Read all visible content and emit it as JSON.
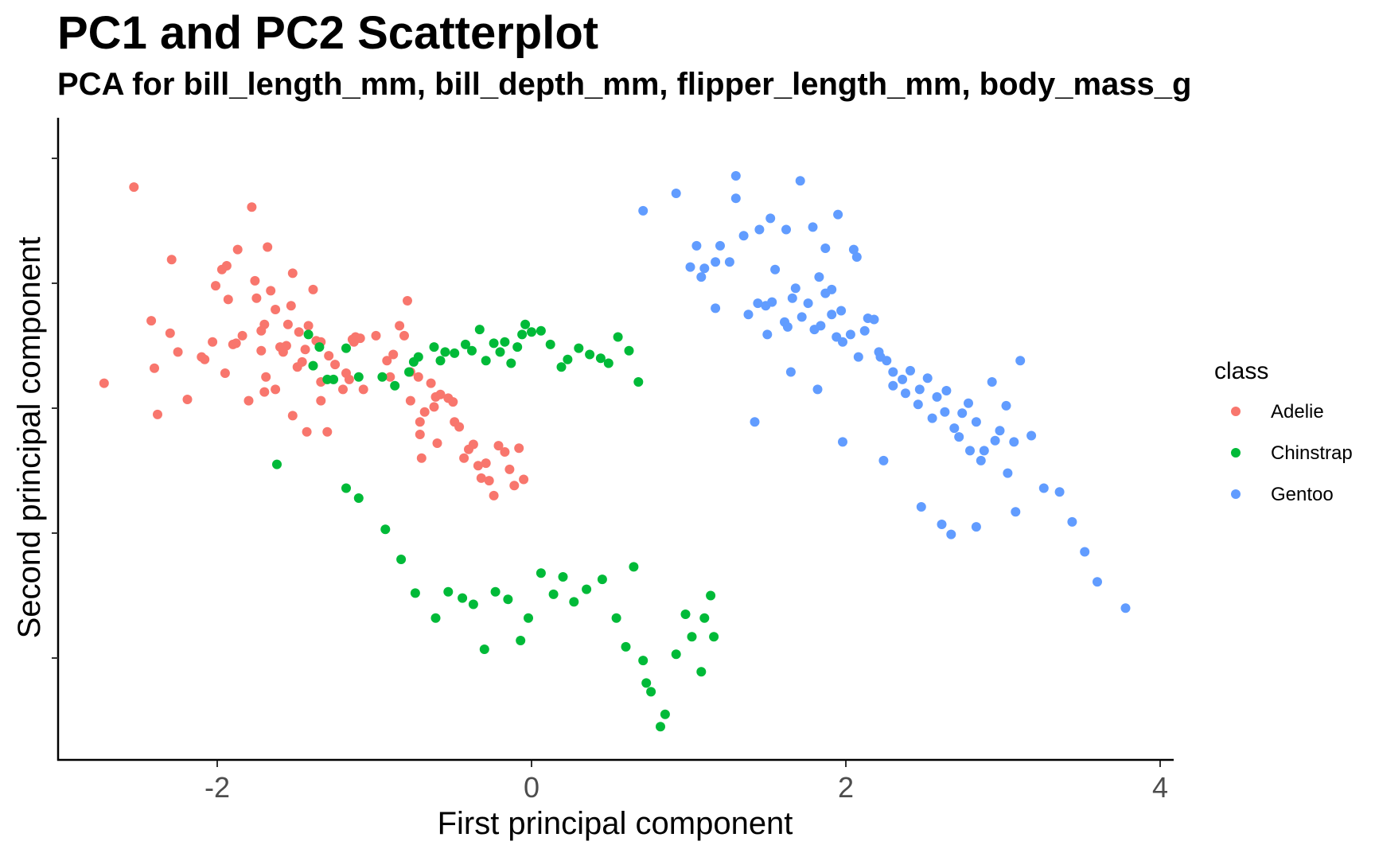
{
  "chart_data": {
    "type": "scatter",
    "title": "PC1 and PC2 Scatterplot",
    "subtitle": "PCA for bill_length_mm, bill_depth_mm, flipper_length_mm, body_mass_g",
    "xlabel": "First principal component",
    "ylabel": "Second principal component",
    "xlim": [
      -3,
      4.1
    ],
    "ylim": [
      -2.7,
      2.4
    ],
    "xticks": [
      -2,
      0,
      2,
      4
    ],
    "xtick_labels": [
      "-2",
      "0",
      "2",
      "4"
    ],
    "yticks": [
      -2,
      -1,
      0,
      1,
      2
    ],
    "ytick_labels": [
      "",
      "",
      "",
      "",
      ""
    ],
    "grid": false,
    "legend": {
      "title": "class",
      "position": "right"
    },
    "series": [
      {
        "name": "Adelie",
        "color": "#F8766D",
        "points": [
          [
            -2.72,
            0.2
          ],
          [
            -2.53,
            1.77
          ],
          [
            -2.42,
            0.7
          ],
          [
            -2.4,
            0.32
          ],
          [
            -2.38,
            -0.05
          ],
          [
            -2.3,
            0.6
          ],
          [
            -2.25,
            0.45
          ],
          [
            -2.29,
            1.19
          ],
          [
            -2.19,
            0.07
          ],
          [
            -2.1,
            0.41
          ],
          [
            -2.08,
            0.39
          ],
          [
            -2.03,
            0.53
          ],
          [
            -2.01,
            0.98
          ],
          [
            -1.97,
            1.11
          ],
          [
            -1.95,
            0.28
          ],
          [
            -1.94,
            1.14
          ],
          [
            -1.93,
            0.87
          ],
          [
            -1.9,
            0.51
          ],
          [
            -1.88,
            0.52
          ],
          [
            -1.87,
            1.27
          ],
          [
            -1.84,
            0.58
          ],
          [
            -1.8,
            0.06
          ],
          [
            -1.78,
            1.61
          ],
          [
            -1.76,
            1.02
          ],
          [
            -1.75,
            0.88
          ],
          [
            -1.72,
            0.62
          ],
          [
            -1.72,
            0.46
          ],
          [
            -1.7,
            0.67
          ],
          [
            -1.7,
            0.13
          ],
          [
            -1.69,
            0.25
          ],
          [
            -1.68,
            1.29
          ],
          [
            -1.66,
            0.94
          ],
          [
            -1.63,
            0.15
          ],
          [
            -1.63,
            0.79
          ],
          [
            -1.6,
            0.49
          ],
          [
            -1.58,
            0.45
          ],
          [
            -1.56,
            0.5
          ],
          [
            -1.55,
            0.67
          ],
          [
            -1.53,
            0.82
          ],
          [
            -1.52,
            1.08
          ],
          [
            -1.52,
            -0.06
          ],
          [
            -1.49,
            0.33
          ],
          [
            -1.48,
            0.61
          ],
          [
            -1.46,
            0.37
          ],
          [
            -1.44,
            0.47
          ],
          [
            -1.42,
            0.66
          ],
          [
            -1.43,
            -0.19
          ],
          [
            -1.39,
            0.95
          ],
          [
            -1.37,
            0.54
          ],
          [
            -1.34,
            0.53
          ],
          [
            -1.34,
            0.21
          ],
          [
            -1.34,
            0.06
          ],
          [
            -1.3,
            -0.19
          ],
          [
            -1.29,
            0.42
          ],
          [
            -1.25,
            0.35
          ],
          [
            -1.2,
            0.15
          ],
          [
            -1.18,
            0.28
          ],
          [
            -1.16,
            0.23
          ],
          [
            -1.14,
            0.55
          ],
          [
            -1.13,
            0.53
          ],
          [
            -1.12,
            0.57
          ],
          [
            -1.09,
            0.56
          ],
          [
            -1.07,
            0.15
          ],
          [
            -0.99,
            0.58
          ],
          [
            -0.92,
            0.38
          ],
          [
            -0.9,
            0.25
          ],
          [
            -0.88,
            0.43
          ],
          [
            -0.84,
            0.66
          ],
          [
            -0.81,
            0.58
          ],
          [
            -0.79,
            0.86
          ],
          [
            -0.77,
            0.29
          ],
          [
            -0.77,
            0.06
          ],
          [
            -0.72,
            0.25
          ],
          [
            -0.71,
            -0.11
          ],
          [
            -0.71,
            -0.21
          ],
          [
            -0.7,
            -0.4
          ],
          [
            -0.68,
            -0.03
          ],
          [
            -0.64,
            0.2
          ],
          [
            -0.62,
            0.01
          ],
          [
            -0.61,
            0.09
          ],
          [
            -0.6,
            -0.28
          ],
          [
            -0.58,
            0.11
          ],
          [
            -0.53,
            0.08
          ],
          [
            -0.5,
            0.05
          ],
          [
            -0.49,
            -0.11
          ],
          [
            -0.46,
            -0.15
          ],
          [
            -0.43,
            -0.4
          ],
          [
            -0.4,
            -0.33
          ],
          [
            -0.37,
            -0.29
          ],
          [
            -0.34,
            -0.46
          ],
          [
            -0.32,
            -0.56
          ],
          [
            -0.29,
            -0.44
          ],
          [
            -0.27,
            -0.58
          ],
          [
            -0.24,
            -0.7
          ],
          [
            -0.21,
            -0.3
          ],
          [
            -0.17,
            -0.35
          ],
          [
            -0.14,
            -0.49
          ],
          [
            -0.11,
            -0.62
          ],
          [
            -0.08,
            -0.32
          ],
          [
            -0.05,
            -0.57
          ]
        ]
      },
      {
        "name": "Chinstrap",
        "color": "#00BA38",
        "points": [
          [
            -1.42,
            0.59
          ],
          [
            -1.39,
            0.34
          ],
          [
            -1.35,
            0.49
          ],
          [
            -1.3,
            0.23
          ],
          [
            -1.26,
            0.23
          ],
          [
            -1.18,
            0.48
          ],
          [
            -1.1,
            0.25
          ],
          [
            -0.95,
            0.25
          ],
          [
            -0.87,
            0.18
          ],
          [
            -0.78,
            0.29
          ],
          [
            -0.75,
            0.37
          ],
          [
            -0.72,
            0.41
          ],
          [
            -0.62,
            0.49
          ],
          [
            -0.58,
            0.38
          ],
          [
            -0.55,
            0.45
          ],
          [
            -0.49,
            0.44
          ],
          [
            -0.42,
            0.51
          ],
          [
            -0.38,
            0.46
          ],
          [
            -0.33,
            0.63
          ],
          [
            -0.29,
            0.38
          ],
          [
            -0.24,
            0.52
          ],
          [
            -0.2,
            0.45
          ],
          [
            -0.17,
            0.53
          ],
          [
            -0.13,
            0.36
          ],
          [
            -0.09,
            0.49
          ],
          [
            -0.06,
            0.59
          ],
          [
            -0.04,
            0.67
          ],
          [
            0.0,
            0.61
          ],
          [
            0.06,
            0.62
          ],
          [
            0.12,
            0.51
          ],
          [
            0.19,
            0.33
          ],
          [
            0.23,
            0.39
          ],
          [
            0.3,
            0.48
          ],
          [
            0.37,
            0.43
          ],
          [
            0.44,
            0.4
          ],
          [
            0.49,
            0.36
          ],
          [
            0.55,
            0.57
          ],
          [
            0.62,
            0.46
          ],
          [
            0.68,
            0.21
          ],
          [
            -1.62,
            -0.45
          ],
          [
            -1.18,
            -0.64
          ],
          [
            -1.1,
            -0.72
          ],
          [
            -0.93,
            -0.97
          ],
          [
            -0.83,
            -1.21
          ],
          [
            -0.74,
            -1.48
          ],
          [
            -0.61,
            -1.68
          ],
          [
            -0.53,
            -1.47
          ],
          [
            -0.44,
            -1.52
          ],
          [
            -0.37,
            -1.57
          ],
          [
            -0.3,
            -1.93
          ],
          [
            -0.23,
            -1.47
          ],
          [
            -0.15,
            -1.53
          ],
          [
            -0.07,
            -1.86
          ],
          [
            -0.02,
            -1.68
          ],
          [
            0.06,
            -1.32
          ],
          [
            0.14,
            -1.49
          ],
          [
            0.2,
            -1.35
          ],
          [
            0.27,
            -1.55
          ],
          [
            0.35,
            -1.45
          ],
          [
            0.45,
            -1.37
          ],
          [
            0.54,
            -1.68
          ],
          [
            0.6,
            -1.91
          ],
          [
            0.65,
            -1.27
          ],
          [
            0.71,
            -2.02
          ],
          [
            0.73,
            -2.2
          ],
          [
            0.76,
            -2.27
          ],
          [
            0.82,
            -2.55
          ],
          [
            0.85,
            -2.45
          ],
          [
            0.92,
            -1.97
          ],
          [
            0.98,
            -1.65
          ],
          [
            1.02,
            -1.83
          ],
          [
            1.08,
            -2.11
          ],
          [
            1.1,
            -1.68
          ],
          [
            1.14,
            -1.5
          ],
          [
            1.16,
            -1.83
          ]
        ]
      },
      {
        "name": "Gentoo",
        "color": "#619CFF",
        "points": [
          [
            0.71,
            1.58
          ],
          [
            0.92,
            1.72
          ],
          [
            1.01,
            1.13
          ],
          [
            1.05,
            1.3
          ],
          [
            1.08,
            1.05
          ],
          [
            1.1,
            1.12
          ],
          [
            1.17,
            1.17
          ],
          [
            1.17,
            0.8
          ],
          [
            1.2,
            1.3
          ],
          [
            1.26,
            1.17
          ],
          [
            1.3,
            1.68
          ],
          [
            1.38,
            0.75
          ],
          [
            1.44,
            0.84
          ],
          [
            1.49,
            0.82
          ],
          [
            1.5,
            0.59
          ],
          [
            1.53,
            0.85
          ],
          [
            1.55,
            1.11
          ],
          [
            1.61,
            0.69
          ],
          [
            1.63,
            0.65
          ],
          [
            1.66,
            0.88
          ],
          [
            1.68,
            0.96
          ],
          [
            1.72,
            0.73
          ],
          [
            1.76,
            0.84
          ],
          [
            1.8,
            0.63
          ],
          [
            1.84,
            0.66
          ],
          [
            1.87,
            0.92
          ],
          [
            1.91,
            0.75
          ],
          [
            1.94,
            0.57
          ],
          [
            1.98,
            0.53
          ],
          [
            2.03,
            0.59
          ],
          [
            2.08,
            0.41
          ],
          [
            2.12,
            0.62
          ],
          [
            2.18,
            0.71
          ],
          [
            2.21,
            0.45
          ],
          [
            2.26,
            0.38
          ],
          [
            2.3,
            0.29
          ],
          [
            2.36,
            0.23
          ],
          [
            2.41,
            0.3
          ],
          [
            2.47,
            0.15
          ],
          [
            2.52,
            0.24
          ],
          [
            2.58,
            0.09
          ],
          [
            2.63,
            -0.03
          ],
          [
            2.69,
            -0.16
          ],
          [
            2.74,
            -0.04
          ],
          [
            2.78,
            0.04
          ],
          [
            2.83,
            -0.11
          ],
          [
            2.88,
            -0.34
          ],
          [
            2.95,
            -0.26
          ],
          [
            3.03,
            -0.52
          ],
          [
            3.08,
            -0.83
          ],
          [
            1.3,
            1.86
          ],
          [
            1.52,
            1.52
          ],
          [
            1.71,
            1.82
          ],
          [
            1.87,
            1.28
          ],
          [
            1.95,
            1.55
          ],
          [
            2.07,
            1.21
          ],
          [
            1.35,
            1.38
          ],
          [
            1.45,
            1.43
          ],
          [
            1.62,
            1.43
          ],
          [
            1.79,
            1.45
          ],
          [
            1.83,
            1.05
          ],
          [
            1.91,
            0.95
          ],
          [
            1.97,
            0.78
          ],
          [
            2.05,
            1.27
          ],
          [
            2.14,
            0.72
          ],
          [
            2.22,
            0.41
          ],
          [
            2.3,
            0.18
          ],
          [
            2.38,
            0.12
          ],
          [
            2.46,
            0.03
          ],
          [
            2.55,
            -0.08
          ],
          [
            2.64,
            0.14
          ],
          [
            2.72,
            -0.23
          ],
          [
            2.79,
            -0.34
          ],
          [
            2.86,
            -0.42
          ],
          [
            2.93,
            0.21
          ],
          [
            2.98,
            -0.18
          ],
          [
            3.02,
            0.02
          ],
          [
            3.07,
            -0.27
          ],
          [
            3.11,
            0.38
          ],
          [
            3.18,
            -0.22
          ],
          [
            3.36,
            -0.67
          ],
          [
            3.44,
            -0.91
          ],
          [
            3.52,
            -1.15
          ],
          [
            3.6,
            -1.39
          ],
          [
            3.78,
            -1.6
          ],
          [
            1.42,
            -0.11
          ],
          [
            1.65,
            0.29
          ],
          [
            1.82,
            0.15
          ],
          [
            1.98,
            -0.27
          ],
          [
            2.24,
            -0.42
          ],
          [
            2.48,
            -0.79
          ],
          [
            2.61,
            -0.93
          ],
          [
            2.67,
            -1.01
          ],
          [
            2.83,
            -0.95
          ],
          [
            3.26,
            -0.64
          ]
        ]
      }
    ]
  }
}
